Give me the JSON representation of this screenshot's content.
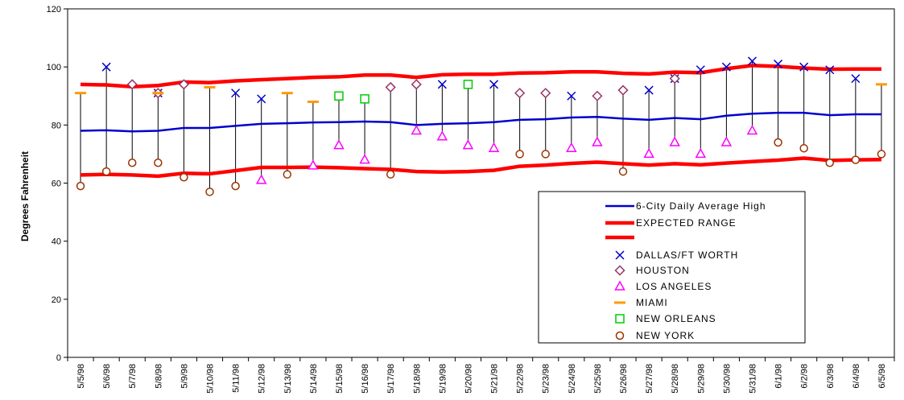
{
  "chart_data": {
    "type": "line",
    "ylabel": "Degrees Fahrenheit",
    "ylim": [
      0,
      120
    ],
    "yticks": [
      0,
      20,
      40,
      60,
      80,
      100,
      120
    ],
    "grid": false,
    "legend_position": "bottom-right",
    "categories": [
      "5/5/98",
      "5/6/98",
      "5/7/98",
      "5/8/98",
      "5/9/98",
      "5/10/98",
      "5/11/98",
      "5/12/98",
      "5/13/98",
      "5/14/98",
      "5/15/98",
      "5/16/98",
      "5/17/98",
      "5/18/98",
      "5/19/98",
      "5/20/98",
      "5/21/98",
      "5/22/98",
      "5/23/98",
      "5/24/98",
      "5/25/98",
      "5/26/98",
      "5/27/98",
      "5/28/98",
      "5/29/98",
      "5/30/98",
      "5/31/98",
      "6/1/98",
      "6/2/98",
      "6/3/98",
      "6/4/98",
      "6/5/98"
    ],
    "tick_labels": [
      "5/5/98",
      "5/6/98",
      "5/7/98",
      "5/8/98",
      "5/9/98",
      "5/10/98",
      "5/11/98",
      "5/12/98",
      "5/13/98",
      "5/14/98",
      "5/15/98",
      "5/16/98",
      "5/17/98",
      "5/18/98",
      "5/19/98",
      "5/20/98",
      "5/21/98",
      "5/22/98",
      "5/23/98",
      "5/24/98",
      "5/25/98",
      "5/26/98",
      "5/27/98",
      "5/28/98",
      "5/29/98",
      "5/30/98",
      "5/31/98",
      "6/1/98",
      "6/2/98",
      "6/3/98",
      "6/4/98",
      "6/5/98"
    ],
    "lines": [
      {
        "name": "6-City Daily Average High",
        "color": "#0000cc",
        "values": [
          78,
          78.2,
          77.8,
          78,
          79,
          79,
          79.7,
          80.4,
          80.6,
          80.9,
          81,
          81.2,
          81,
          80,
          80.4,
          80.6,
          81,
          81.8,
          82,
          82.6,
          82.8,
          82.2,
          81.8,
          82.4,
          82,
          83.2,
          83.9,
          84.2,
          84.2,
          83.4,
          83.7,
          83.7
        ]
      },
      {
        "name": "EXPECTED RANGE",
        "color": "#ff0000",
        "values": [
          94,
          93.8,
          93.2,
          93.6,
          94.8,
          94.6,
          95.2,
          95.6,
          96,
          96.4,
          96.6,
          97.2,
          97.2,
          96.4,
          97.3,
          97.5,
          97.5,
          97.9,
          98,
          98.3,
          98.3,
          97.8,
          97.6,
          98.2,
          98,
          99.4,
          100.5,
          100.2,
          99.6,
          99.2,
          99.3,
          99.3
        ]
      },
      {
        "name": "",
        "color": "#ff0000",
        "values": [
          62.8,
          63,
          62.8,
          62.4,
          63.4,
          63.2,
          64.3,
          65.4,
          65.4,
          65.5,
          65.3,
          65,
          64.7,
          64,
          63.8,
          64,
          64.4,
          65.8,
          66.2,
          66.8,
          67.2,
          66.7,
          66.2,
          66.7,
          66.3,
          66.9,
          67.4,
          67.9,
          68.6,
          67.8,
          68,
          68.1
        ]
      }
    ],
    "series": [
      {
        "name": "DALLAS/FT WORTH",
        "color": "#0000cc",
        "marker": "x",
        "values": [
          null,
          100,
          null,
          91,
          null,
          null,
          91,
          89,
          null,
          null,
          null,
          null,
          null,
          null,
          94,
          null,
          94,
          null,
          null,
          90,
          null,
          null,
          92,
          96,
          99,
          100,
          102,
          101,
          100,
          99,
          96,
          null
        ]
      },
      {
        "name": "HOUSTON",
        "color": "#993366",
        "marker": "diamond",
        "values": [
          null,
          null,
          94,
          91,
          94,
          null,
          null,
          null,
          null,
          null,
          null,
          null,
          93,
          94,
          null,
          null,
          null,
          91,
          91,
          null,
          90,
          92,
          null,
          96,
          null,
          null,
          null,
          null,
          null,
          null,
          null,
          null
        ]
      },
      {
        "name": "LOS ANGELES",
        "color": "#ff00ff",
        "marker": "triangle",
        "values": [
          null,
          null,
          null,
          null,
          null,
          null,
          null,
          61,
          null,
          66,
          73,
          68,
          null,
          78,
          76,
          73,
          72,
          null,
          null,
          72,
          74,
          null,
          70,
          74,
          70,
          74,
          78,
          null,
          null,
          null,
          null,
          null
        ]
      },
      {
        "name": "MIAMI",
        "color": "#ff9900",
        "marker": "dash",
        "values": [
          91,
          null,
          null,
          91,
          null,
          93,
          null,
          null,
          91,
          88,
          null,
          null,
          null,
          null,
          null,
          null,
          null,
          null,
          null,
          null,
          null,
          null,
          null,
          null,
          null,
          null,
          null,
          null,
          null,
          null,
          null,
          94
        ]
      },
      {
        "name": "NEW ORLEANS",
        "color": "#00cc00",
        "marker": "square",
        "values": [
          null,
          null,
          null,
          null,
          null,
          null,
          null,
          null,
          null,
          null,
          90,
          89,
          null,
          null,
          null,
          94,
          null,
          null,
          null,
          null,
          null,
          null,
          null,
          null,
          null,
          null,
          null,
          null,
          null,
          null,
          null,
          null
        ]
      },
      {
        "name": "NEW YORK",
        "color": "#993300",
        "marker": "circle",
        "values": [
          59,
          64,
          67,
          67,
          62,
          57,
          59,
          null,
          63,
          null,
          null,
          null,
          63,
          null,
          null,
          null,
          null,
          70,
          70,
          null,
          null,
          64,
          null,
          null,
          null,
          null,
          null,
          74,
          72,
          67,
          68,
          70
        ]
      }
    ]
  }
}
